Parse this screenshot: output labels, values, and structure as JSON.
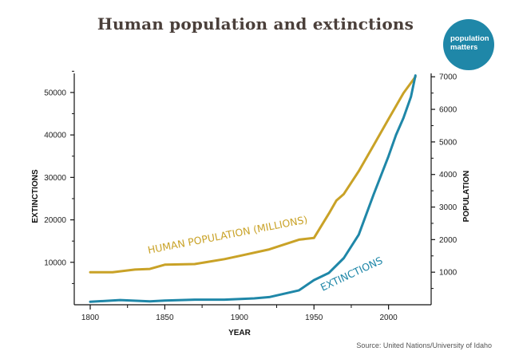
{
  "title": "Human population and extinctions",
  "logo": {
    "line1": "population",
    "line2": "matters"
  },
  "source": "Source: United Nations/University of Idaho",
  "colors": {
    "population": "#c9a227",
    "extinctions": "#1f87a8",
    "title": "#4a3f3a"
  },
  "chart_data": {
    "type": "line",
    "title": "Human population and extinctions",
    "xlabel": "YEAR",
    "ylabel_left": "EXTINCTIONS",
    "ylabel_right": "POPULATION",
    "xlim": [
      1800,
      2020
    ],
    "ylim_left": [
      0,
      56000
    ],
    "ylim_right": [
      0,
      7300
    ],
    "x_ticks": [
      "1800",
      "1850",
      "1900",
      "1950",
      "2000"
    ],
    "y_left_ticks": [
      "10000",
      "20000",
      "30000",
      "40000",
      "50000"
    ],
    "y_right_ticks": [
      "1000",
      "2000",
      "3000",
      "4000",
      "5000",
      "6000",
      "7000"
    ],
    "grid": false,
    "series": [
      {
        "name": "HUMAN POPULATION (MILLIONS)",
        "axis": "right",
        "color": "#c9a227",
        "x": [
          1800,
          1815,
          1830,
          1840,
          1850,
          1870,
          1890,
          1900,
          1920,
          1940,
          1950,
          1960,
          1965,
          1970,
          1980,
          1990,
          2000,
          2010,
          2018
        ],
        "y": [
          1000,
          1000,
          1080,
          1100,
          1230,
          1250,
          1400,
          1500,
          1700,
          2000,
          2050,
          2800,
          3200,
          3400,
          4100,
          4900,
          5700,
          6500,
          7000
        ]
      },
      {
        "name": "EXTINCTIONS",
        "axis": "left",
        "color": "#1f87a8",
        "x": [
          1800,
          1820,
          1840,
          1850,
          1870,
          1890,
          1910,
          1920,
          1940,
          1950,
          1960,
          1970,
          1980,
          1990,
          2000,
          2005,
          2010,
          2015,
          2018
        ],
        "y": [
          700,
          1100,
          800,
          1000,
          1200,
          1200,
          1500,
          1800,
          3400,
          5800,
          7500,
          11000,
          16500,
          26000,
          35000,
          40000,
          44000,
          49000,
          54000
        ]
      }
    ]
  }
}
